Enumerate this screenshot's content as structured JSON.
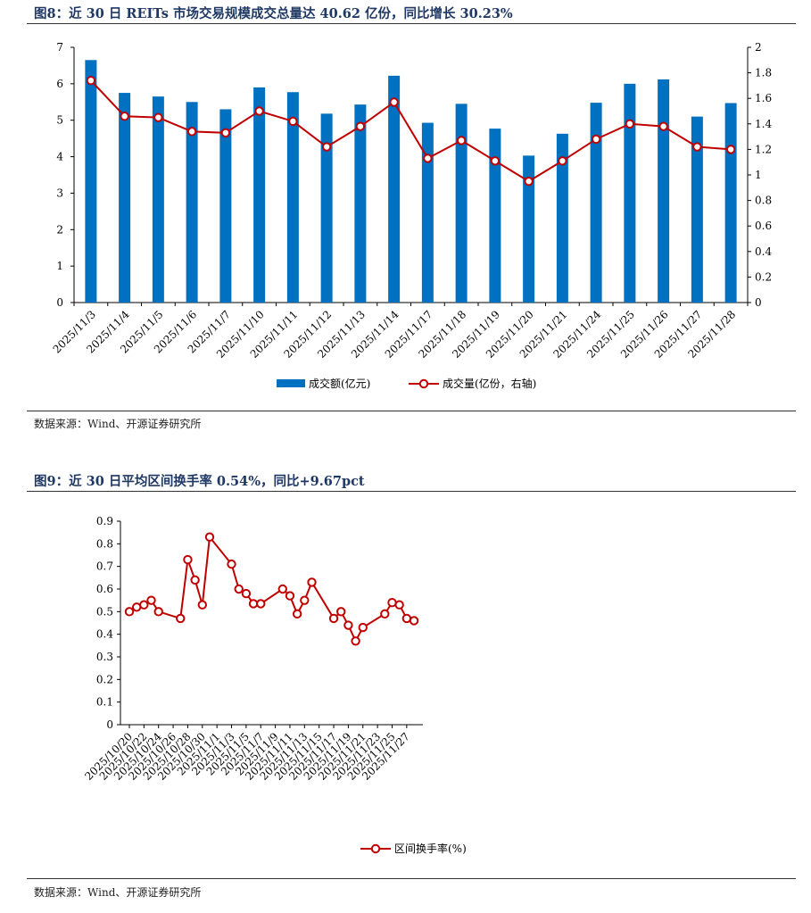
{
  "chart_data": [
    {
      "type": "bar+line",
      "title": "图8：近 30 日 REITs 市场交易规模成交总量达 40.62 亿份，同比增长 30.23%",
      "categories": [
        "2025/11/3",
        "2025/11/4",
        "2025/11/5",
        "2025/11/6",
        "2025/11/7",
        "2025/11/10",
        "2025/11/11",
        "2025/11/12",
        "2025/11/13",
        "2025/11/14",
        "2025/11/17",
        "2025/11/18",
        "2025/11/19",
        "2025/11/20",
        "2025/11/21",
        "2025/11/24",
        "2025/11/25",
        "2025/11/26",
        "2025/11/27",
        "2025/11/28"
      ],
      "series": [
        {
          "name": "成交额(亿元)",
          "type": "bar",
          "axis": "left",
          "color": "#0070c0",
          "values": [
            6.65,
            5.75,
            5.65,
            5.5,
            5.3,
            5.9,
            5.77,
            5.18,
            5.43,
            6.22,
            4.93,
            5.45,
            4.77,
            4.03,
            4.63,
            5.48,
            6.0,
            6.12,
            5.1,
            5.47
          ]
        },
        {
          "name": "成交量(亿份，右轴)",
          "type": "line",
          "axis": "right",
          "color": "#c00000",
          "values": [
            1.74,
            1.46,
            1.45,
            1.34,
            1.33,
            1.5,
            1.42,
            1.22,
            1.38,
            1.57,
            1.13,
            1.27,
            1.11,
            0.95,
            1.11,
            1.28,
            1.4,
            1.38,
            1.22,
            1.2
          ]
        }
      ],
      "y_left": {
        "min": 0,
        "max": 7,
        "ticks": [
          0,
          1,
          2,
          3,
          4,
          5,
          6,
          7
        ],
        "labels": [
          "0",
          "1",
          "2",
          "3",
          "4",
          "5",
          "6",
          "7"
        ]
      },
      "y_right": {
        "min": 0,
        "max": 2,
        "ticks": [
          0,
          0.2,
          0.4,
          0.6,
          0.8,
          1,
          1.2,
          1.4,
          1.6,
          1.8,
          2
        ],
        "labels": [
          "0",
          "0.2",
          "0.4",
          "0.6",
          "0.8",
          "1",
          "1.2",
          "1.4",
          "1.6",
          "1.8",
          "2"
        ]
      },
      "legend_position": "bottom-center",
      "source": "数据来源：Wind、开源证券研究所"
    },
    {
      "type": "line",
      "title": "图9：近 30 日平均区间换手率 0.54%，同比+9.67pct",
      "categories": [
        "2025/10/20",
        "2025/10/21",
        "2025/10/22",
        "2025/10/23",
        "2025/10/24",
        "2025/10/25",
        "2025/10/26",
        "2025/10/27",
        "2025/10/28",
        "2025/10/29",
        "2025/10/30",
        "2025/10/31",
        "2025/11/1",
        "2025/11/2",
        "2025/11/3",
        "2025/11/4",
        "2025/11/5",
        "2025/11/6",
        "2025/11/7",
        "2025/11/8",
        "2025/11/9",
        "2025/11/10",
        "2025/11/11",
        "2025/11/12",
        "2025/11/13",
        "2025/11/14",
        "2025/11/15",
        "2025/11/16",
        "2025/11/17",
        "2025/11/18",
        "2025/11/19",
        "2025/11/20",
        "2025/11/21",
        "2025/11/22",
        "2025/11/23",
        "2025/11/24",
        "2025/11/25",
        "2025/11/26",
        "2025/11/27",
        "2025/11/28"
      ],
      "tick_labels": [
        "2025/10/20",
        "2025/10/22",
        "2025/10/24",
        "2025/10/26",
        "2025/10/28",
        "2025/10/30",
        "2025/11/1",
        "2025/11/3",
        "2025/11/5",
        "2025/11/7",
        "2025/11/9",
        "2025/11/11",
        "2025/11/13",
        "2025/11/15",
        "2025/11/17",
        "2025/11/19",
        "2025/11/21",
        "2025/11/23",
        "2025/11/25",
        "2025/11/27"
      ],
      "series": [
        {
          "name": "区间换手率(%)",
          "color": "#c00000",
          "values": [
            0.5,
            0.52,
            0.53,
            0.55,
            0.5,
            null,
            null,
            0.47,
            0.73,
            0.64,
            0.53,
            0.83,
            null,
            null,
            0.71,
            0.6,
            0.58,
            0.535,
            0.535,
            null,
            null,
            0.6,
            0.57,
            0.49,
            0.55,
            0.63,
            null,
            null,
            0.47,
            0.5,
            0.44,
            0.37,
            0.43,
            null,
            null,
            0.49,
            0.54,
            0.53,
            0.47,
            0.46
          ]
        }
      ],
      "y": {
        "min": 0,
        "max": 0.9,
        "ticks": [
          0,
          0.1,
          0.2,
          0.3,
          0.4,
          0.5,
          0.6,
          0.7,
          0.8,
          0.9
        ],
        "labels": [
          "0",
          "0.1",
          "0.2",
          "0.3",
          "0.4",
          "0.5",
          "0.6",
          "0.7",
          "0.8",
          "0.9"
        ]
      },
      "legend_position": "bottom-center",
      "source": "数据来源：Wind、开源证券研究所"
    }
  ]
}
